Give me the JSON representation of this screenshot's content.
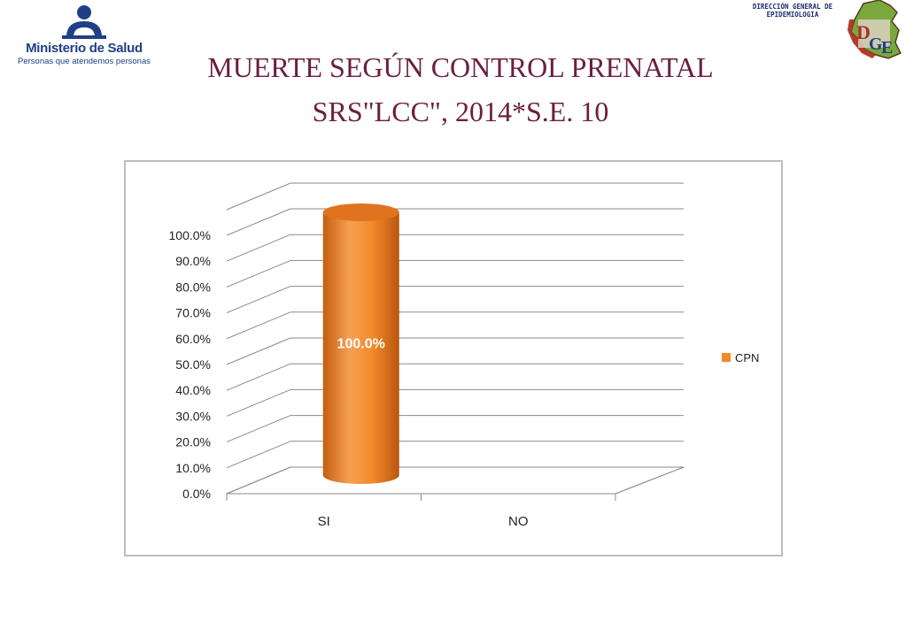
{
  "header": {
    "logo_left_name": "Ministerio de Salud",
    "logo_left_tagline": "Personas que atendemos personas",
    "org_line1": "DIRECCIÓN GENERAL DE",
    "org_line2": "EPIDEMIOLOGIA",
    "dge_logo_letters": "DGE"
  },
  "title_line1": "MUERTE SEGÚN CONTROL PRENATAL",
  "title_line2": "SRS\"LCC\",  2014*S.E. 10",
  "chart_data": {
    "type": "bar",
    "style": "3d-cylinder",
    "categories": [
      "SI",
      "NO"
    ],
    "series": [
      {
        "name": "CPN",
        "values": [
          100.0,
          0.0
        ],
        "color": "#f28a2a"
      }
    ],
    "data_labels": [
      "100.0%",
      ""
    ],
    "y_ticks": [
      "0.0%",
      "10.0%",
      "20.0%",
      "30.0%",
      "40.0%",
      "50.0%",
      "60.0%",
      "70.0%",
      "80.0%",
      "90.0%",
      "100.0%"
    ],
    "ylim": [
      0,
      100
    ],
    "grid": true,
    "legend_position": "right"
  }
}
